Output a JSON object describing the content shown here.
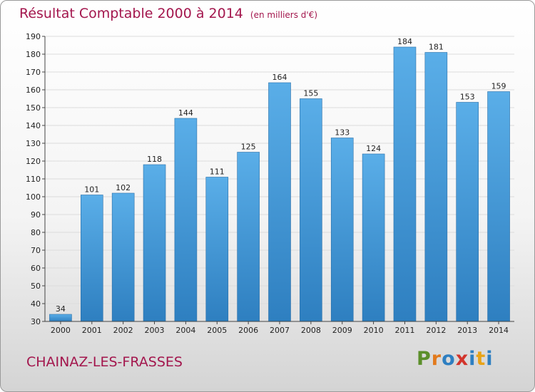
{
  "title": "Résultat Comptable 2000 à 2014",
  "unit": "(en milliers d'€)",
  "commune": "CHAINAZ-LES-FRASSES",
  "logo": {
    "letters": [
      "P",
      "r",
      "o",
      "x",
      "i",
      "t",
      "i"
    ]
  },
  "colors": {
    "bar": "#4a9fde",
    "bar_dark": "#2f7fc0",
    "title": "#a3164d",
    "grid": "#dcdcdc",
    "logo": [
      "#5b8f2a",
      "#e27a1d",
      "#2e7fc1",
      "#d2342b",
      "#2e7fc1",
      "#e8a317",
      "#2e7fc1"
    ]
  },
  "chart_data": {
    "type": "bar",
    "title": "Résultat Comptable 2000 à 2014",
    "unit": "(en milliers d'€)",
    "categories": [
      "2000",
      "2001",
      "2002",
      "2003",
      "2004",
      "2005",
      "2006",
      "2007",
      "2008",
      "2009",
      "2010",
      "2011",
      "2012",
      "2013",
      "2014"
    ],
    "values": [
      34,
      101,
      102,
      118,
      144,
      111,
      125,
      164,
      155,
      133,
      124,
      184,
      181,
      153,
      159
    ],
    "ylim": [
      30,
      190
    ],
    "yticks": [
      30,
      40,
      50,
      60,
      70,
      80,
      90,
      100,
      110,
      120,
      130,
      140,
      150,
      160,
      170,
      180,
      190
    ],
    "grid": true
  }
}
